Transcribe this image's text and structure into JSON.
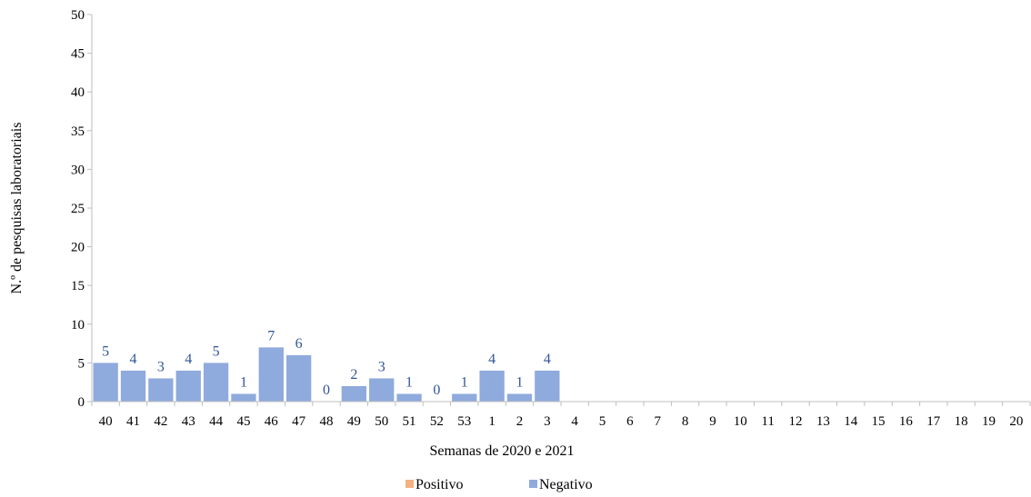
{
  "chart_data": {
    "type": "bar",
    "xlabel": "Semanas de 2020 e 2021",
    "ylabel": "N.º de pesquisas laboratoriais",
    "ylim": [
      0,
      50
    ],
    "yticks": [
      0,
      5,
      10,
      15,
      20,
      25,
      30,
      35,
      40,
      45,
      50
    ],
    "categories": [
      "40",
      "41",
      "42",
      "43",
      "44",
      "45",
      "46",
      "47",
      "48",
      "49",
      "50",
      "51",
      "52",
      "53",
      "1",
      "2",
      "3",
      "4",
      "5",
      "6",
      "7",
      "8",
      "9",
      "10",
      "11",
      "12",
      "13",
      "14",
      "15",
      "16",
      "17",
      "18",
      "19",
      "20"
    ],
    "series": [
      {
        "name": "Positivo",
        "color": "#f4b183",
        "values": [
          0,
          0,
          0,
          0,
          0,
          0,
          0,
          0,
          0,
          0,
          0,
          0,
          0,
          0,
          0,
          0,
          0,
          null,
          null,
          null,
          null,
          null,
          null,
          null,
          null,
          null,
          null,
          null,
          null,
          null,
          null,
          null,
          null,
          null
        ]
      },
      {
        "name": "Negativo",
        "color": "#8faadc",
        "values": [
          5,
          4,
          3,
          4,
          5,
          1,
          7,
          6,
          0,
          2,
          3,
          1,
          0,
          1,
          4,
          1,
          4,
          null,
          null,
          null,
          null,
          null,
          null,
          null,
          null,
          null,
          null,
          null,
          null,
          null,
          null,
          null,
          null,
          null
        ]
      }
    ],
    "data_labels": [
      "5",
      "4",
      "3",
      "4",
      "5",
      "1",
      "7",
      "6",
      "0",
      "2",
      "3",
      "1",
      "0",
      "1",
      "4",
      "1",
      "4"
    ],
    "data_label_color": "#2f5597",
    "grid": false,
    "legend_position": "bottom"
  }
}
